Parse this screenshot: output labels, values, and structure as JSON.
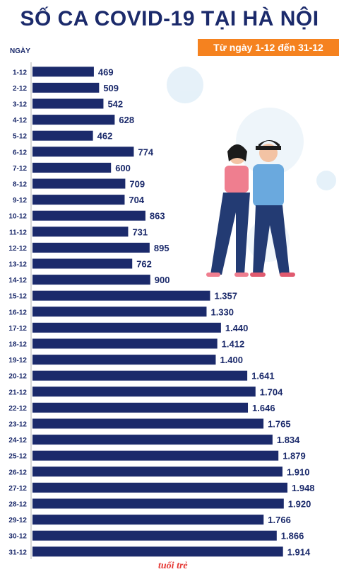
{
  "title": "SỐ CA COVID-19 TẠI HÀ NỘI",
  "subtitle": "Từ ngày 1-12 đến 31-12",
  "axis_label": "NGÀY",
  "logo_text": "tuổi trẻ",
  "colors": {
    "bar": "#1b2a6b",
    "title": "#1b2a6b",
    "accent": "#f5821f"
  },
  "chart_data": {
    "type": "bar",
    "orientation": "horizontal",
    "title": "SỐ CA COVID-19 TẠI HÀ NỘI",
    "subtitle": "Từ ngày 1-12 đến 31-12",
    "ylabel": "NGÀY",
    "categories": [
      "1-12",
      "2-12",
      "3-12",
      "4-12",
      "5-12",
      "6-12",
      "7-12",
      "8-12",
      "9-12",
      "10-12",
      "11-12",
      "12-12",
      "13-12",
      "14-12",
      "15-12",
      "16-12",
      "17-12",
      "18-12",
      "19-12",
      "20-12",
      "21-12",
      "22-12",
      "23-12",
      "24-12",
      "25-12",
      "26-12",
      "27-12",
      "28-12",
      "29-12",
      "30-12",
      "31-12"
    ],
    "values": [
      469,
      509,
      542,
      628,
      462,
      774,
      600,
      709,
      704,
      863,
      731,
      895,
      762,
      900,
      1357,
      1330,
      1440,
      1412,
      1400,
      1641,
      1704,
      1646,
      1765,
      1834,
      1879,
      1910,
      1948,
      1920,
      1766,
      1866,
      1914
    ],
    "value_labels": [
      "469",
      "509",
      "542",
      "628",
      "462",
      "774",
      "600",
      "709",
      "704",
      "863",
      "731",
      "895",
      "762",
      "900",
      "1.357",
      "1.330",
      "1.440",
      "1.412",
      "1.400",
      "1.641",
      "1.704",
      "1.646",
      "1.765",
      "1.834",
      "1.879",
      "1.910",
      "1.948",
      "1.920",
      "1.766",
      "1.866",
      "1.914"
    ]
  }
}
